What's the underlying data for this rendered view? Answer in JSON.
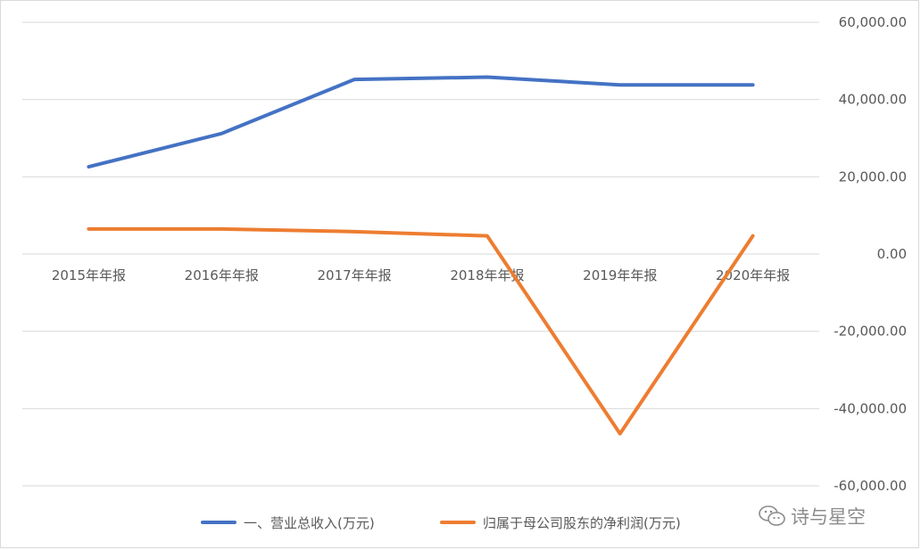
{
  "chart_data": {
    "type": "line",
    "categories": [
      "2015年年报",
      "2016年年报",
      "2017年年报",
      "2018年年报",
      "2019年年报",
      "2020年年报"
    ],
    "series": [
      {
        "name": "一、营业总收入(万元)",
        "color": "#4472c4",
        "values": [
          22600,
          31200,
          45200,
          45800,
          43800,
          43800
        ]
      },
      {
        "name": "归属于母公司股东的净利润(万元)",
        "color": "#ed7d31",
        "values": [
          6500,
          6500,
          5800,
          4700,
          -46500,
          4700
        ]
      }
    ],
    "ylim": [
      -60000,
      60000
    ],
    "yticks": [
      60000,
      40000,
      20000,
      0,
      -20000,
      -40000,
      -60000
    ],
    "ytick_labels": [
      "60,000.00",
      "40,000.00",
      "20,000.00",
      "0.00",
      "-20,000.00",
      "-40,000.00",
      "-60,000.00"
    ],
    "grid": true,
    "legend": "bottom"
  },
  "watermark": {
    "text": "诗与星空",
    "icon": "wechat-icon",
    "color": "#8c8c8c"
  }
}
